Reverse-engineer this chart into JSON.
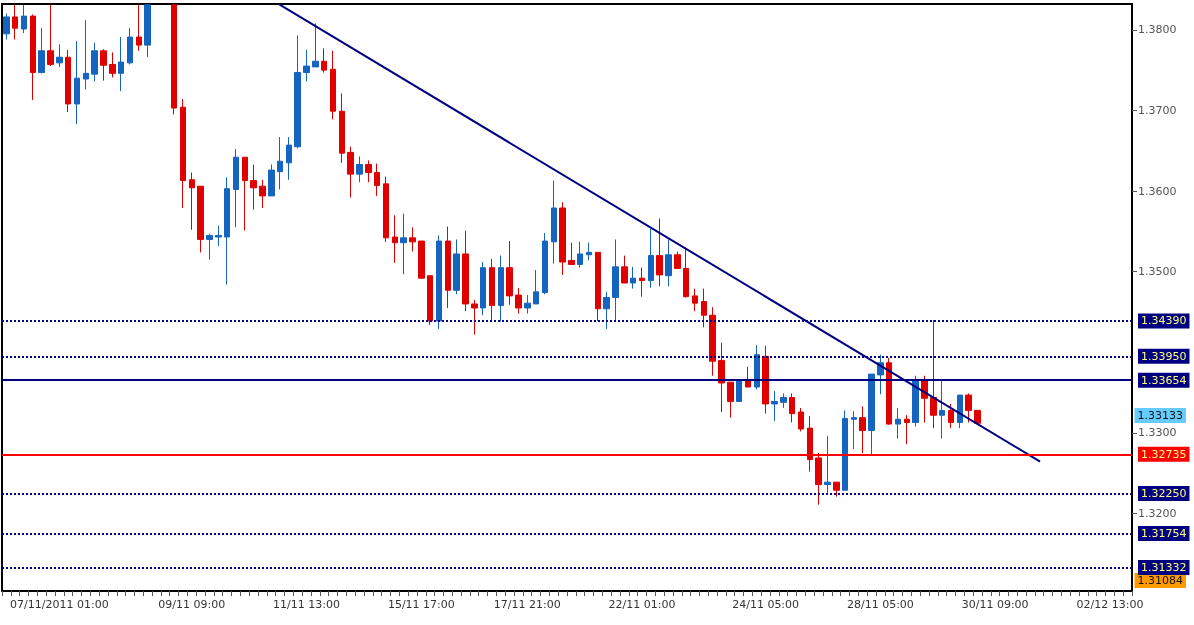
{
  "chart_data": {
    "type": "candlestick",
    "categories": [
      null,
      null,
      null,
      null,
      null,
      null,
      "07/11/2011 01:00",
      null,
      null,
      null,
      null,
      null,
      null,
      null,
      null,
      null,
      null,
      null,
      null,
      null,
      null,
      "09/11 09:00",
      null,
      null,
      null,
      null,
      null,
      null,
      null,
      null,
      null,
      null,
      null,
      null,
      "11/11 13:00",
      null,
      null,
      null,
      null,
      null,
      null,
      null,
      null,
      null,
      null,
      null,
      null,
      "15/11 17:00",
      null,
      null,
      null,
      null,
      null,
      null,
      null,
      null,
      null,
      null,
      null,
      "17/11 21:00",
      null,
      null,
      null,
      null,
      null,
      null,
      null,
      null,
      null,
      null,
      null,
      null,
      "22/11 01:00",
      null,
      null,
      null,
      null,
      null,
      null,
      null,
      null,
      null,
      null,
      null,
      null,
      null,
      "24/11 05:00",
      null,
      null,
      null,
      null,
      null,
      null,
      null,
      null,
      null,
      null,
      null,
      null,
      "28/11 05:00",
      null,
      null,
      null,
      null,
      null,
      null,
      null,
      null,
      null,
      null,
      null,
      null,
      "30/11 09:00",
      null,
      null,
      null,
      null,
      null,
      null,
      null,
      null,
      null,
      null,
      null,
      null,
      "02/12 13:00",
      null,
      null
    ],
    "series": [
      {
        "ohlc": [
          [
            1.3795,
            1.382,
            1.3788,
            1.3816
          ],
          [
            1.3816,
            1.3831,
            1.3788,
            1.3802
          ],
          [
            1.3801,
            1.3831,
            1.3796,
            1.3817
          ],
          [
            1.3817,
            1.3819,
            1.3713,
            1.3747
          ],
          [
            1.3747,
            1.3802,
            1.3746,
            1.3774
          ],
          [
            1.3774,
            1.3831,
            1.3755,
            1.3757
          ],
          [
            1.3759,
            1.3782,
            1.3754,
            1.3766
          ],
          [
            1.3766,
            1.3775,
            1.3698,
            1.3708
          ],
          [
            1.3708,
            1.3786,
            1.3683,
            1.374
          ],
          [
            1.3739,
            1.3812,
            1.3726,
            1.3746
          ],
          [
            1.3745,
            1.3784,
            1.3736,
            1.3774
          ],
          [
            1.3774,
            1.3776,
            1.3737,
            1.3756
          ],
          [
            1.3757,
            1.3772,
            1.3741,
            1.3746
          ],
          [
            1.3746,
            1.3791,
            1.3724,
            1.376
          ],
          [
            1.3759,
            1.3802,
            1.3757,
            1.3791
          ],
          [
            1.3791,
            1.3831,
            1.3774,
            1.3781
          ],
          [
            1.3781,
            1.3831,
            1.3766,
            1.3831
          ],
          null,
          null,
          [
            1.3831,
            1.3831,
            1.3695,
            1.3703
          ],
          [
            1.3704,
            1.3714,
            1.3579,
            1.3613
          ],
          [
            1.3614,
            1.3623,
            1.3552,
            1.3604
          ],
          [
            1.3606,
            1.3606,
            1.3524,
            1.354
          ],
          [
            1.354,
            1.3547,
            1.3515,
            1.3545
          ],
          [
            1.3543,
            1.3557,
            1.3532,
            1.3545
          ],
          [
            1.3543,
            1.3617,
            1.3484,
            1.3603
          ],
          [
            1.3602,
            1.3652,
            1.3555,
            1.3642
          ],
          [
            1.3642,
            1.3642,
            1.3551,
            1.3613
          ],
          [
            1.3613,
            1.3633,
            1.3577,
            1.3604
          ],
          [
            1.3606,
            1.3614,
            1.3579,
            1.3594
          ],
          [
            1.3594,
            1.3633,
            1.3594,
            1.3626
          ],
          [
            1.3624,
            1.3667,
            1.3602,
            1.3637
          ],
          [
            1.3635,
            1.3667,
            1.3614,
            1.3657
          ],
          [
            1.3655,
            1.3793,
            1.3653,
            1.3747
          ],
          [
            1.3747,
            1.3775,
            1.3736,
            1.3755
          ],
          [
            1.3754,
            1.3808,
            1.3754,
            1.3761
          ],
          [
            1.3761,
            1.3777,
            1.3747,
            1.375
          ],
          [
            1.3751,
            1.3774,
            1.3689,
            1.3699
          ],
          [
            1.3699,
            1.3721,
            1.3635,
            1.3647
          ],
          [
            1.3648,
            1.3655,
            1.3592,
            1.3621
          ],
          [
            1.3621,
            1.3643,
            1.3611,
            1.3633
          ],
          [
            1.3633,
            1.3638,
            1.3611,
            1.3623
          ],
          [
            1.3623,
            1.3634,
            1.3594,
            1.3607
          ],
          [
            1.3609,
            1.3618,
            1.3537,
            1.3542
          ],
          [
            1.3543,
            1.357,
            1.3511,
            1.3536
          ],
          [
            1.3536,
            1.3572,
            1.3497,
            1.3542
          ],
          [
            1.3542,
            1.3555,
            1.3525,
            1.3537
          ],
          [
            1.3538,
            1.3538,
            1.3491,
            1.3492
          ],
          [
            1.3495,
            1.3495,
            1.3434,
            1.3439
          ],
          [
            1.3439,
            1.3545,
            1.3429,
            1.3538
          ],
          [
            1.3538,
            1.3556,
            1.3455,
            1.3477
          ],
          [
            1.3477,
            1.354,
            1.3472,
            1.3522
          ],
          [
            1.3522,
            1.3551,
            1.3451,
            1.346
          ],
          [
            1.346,
            1.3465,
            1.3422,
            1.3455
          ],
          [
            1.3455,
            1.3512,
            1.3446,
            1.3505
          ],
          [
            1.3505,
            1.3516,
            1.3438,
            1.3458
          ],
          [
            1.3458,
            1.352,
            1.3438,
            1.3505
          ],
          [
            1.3505,
            1.3538,
            1.3459,
            1.347
          ],
          [
            1.3471,
            1.348,
            1.3448,
            1.3455
          ],
          [
            1.3455,
            1.3471,
            1.3448,
            1.3461
          ],
          [
            1.346,
            1.3502,
            1.346,
            1.3475
          ],
          [
            1.3474,
            1.3548,
            1.3472,
            1.3538
          ],
          [
            1.3537,
            1.3613,
            1.351,
            1.3579
          ],
          [
            1.3579,
            1.3586,
            1.3496,
            1.3512
          ],
          [
            1.3514,
            1.3536,
            1.3509,
            1.3509
          ],
          [
            1.3509,
            1.3537,
            1.3505,
            1.3522
          ],
          [
            1.3521,
            1.3536,
            1.3514,
            1.3524
          ],
          [
            1.3524,
            1.3524,
            1.3439,
            1.3454
          ],
          [
            1.3454,
            1.3475,
            1.3429,
            1.3468
          ],
          [
            1.3468,
            1.354,
            1.344,
            1.3506
          ],
          [
            1.3506,
            1.352,
            1.3486,
            1.3486
          ],
          [
            1.3486,
            1.3506,
            1.3479,
            1.3492
          ],
          [
            1.3492,
            1.3505,
            1.3469,
            1.3489
          ],
          [
            1.3489,
            1.3553,
            1.348,
            1.352
          ],
          [
            1.352,
            1.3566,
            1.3482,
            1.3496
          ],
          [
            1.3495,
            1.354,
            1.3482,
            1.3521
          ],
          [
            1.3521,
            1.3525,
            1.3504,
            1.3504
          ],
          [
            1.3504,
            1.353,
            1.3468,
            1.3469
          ],
          [
            1.347,
            1.3479,
            1.3451,
            1.3461
          ],
          [
            1.3463,
            1.3479,
            1.3431,
            1.3446
          ],
          [
            1.3446,
            1.3456,
            1.3371,
            1.3389
          ],
          [
            1.339,
            1.3412,
            1.3326,
            1.3362
          ],
          [
            1.3363,
            1.3363,
            1.3319,
            1.3339
          ],
          [
            1.3339,
            1.3366,
            1.3339,
            1.3366
          ],
          [
            1.3366,
            1.3382,
            1.3357,
            1.3357
          ],
          [
            1.3357,
            1.3409,
            1.3354,
            1.3397
          ],
          [
            1.3395,
            1.3408,
            1.3324,
            1.3336
          ],
          [
            1.3336,
            1.3352,
            1.3315,
            1.3339
          ],
          [
            1.3338,
            1.3349,
            1.3331,
            1.3344
          ],
          [
            1.3344,
            1.3349,
            1.3313,
            1.3324
          ],
          [
            1.3326,
            1.3331,
            1.3302,
            1.3305
          ],
          [
            1.3306,
            1.3321,
            1.3252,
            1.3267
          ],
          [
            1.3269,
            1.3275,
            1.3211,
            1.3236
          ],
          [
            1.3236,
            1.3296,
            1.3225,
            1.3239
          ],
          [
            1.3239,
            1.3239,
            1.3221,
            1.3229
          ],
          [
            1.3229,
            1.3328,
            1.3229,
            1.3318
          ],
          [
            1.3317,
            1.3327,
            1.328,
            1.3319
          ],
          [
            1.3319,
            1.3333,
            1.3275,
            1.3303
          ],
          [
            1.3303,
            1.3373,
            1.3272,
            1.3373
          ],
          [
            1.3372,
            1.3397,
            1.3348,
            1.3387
          ],
          [
            1.3387,
            1.3393,
            1.331,
            1.3311
          ],
          [
            1.3311,
            1.3331,
            1.3293,
            1.3317
          ],
          [
            1.3317,
            1.3322,
            1.3286,
            1.3313
          ],
          [
            1.3313,
            1.3371,
            1.3308,
            1.3366
          ],
          [
            1.3366,
            1.3371,
            1.3313,
            1.3343
          ],
          [
            1.3344,
            1.344,
            1.3306,
            1.3322
          ],
          [
            1.3322,
            1.3366,
            1.3293,
            1.3328
          ],
          [
            1.3328,
            1.3336,
            1.3306,
            1.3313
          ],
          [
            1.3313,
            1.3347,
            1.3306,
            1.3347
          ],
          [
            1.3347,
            1.3349,
            1.3313,
            1.3328
          ],
          [
            1.3328,
            1.3328,
            1.3311,
            1.3312
          ],
          null,
          null,
          null,
          null,
          null,
          null,
          null,
          null,
          null,
          null,
          null,
          null,
          null,
          null,
          null,
          null,
          null
        ],
        "colors": [
          "#1565c0",
          "#e00000",
          "#1565c0",
          "#e00000",
          "#1565c0",
          "#e00000",
          "#1565c0",
          "#e00000",
          "#1565c0",
          "#1565c0",
          "#1565c0",
          "#e00000",
          "#e00000",
          "#1565c0",
          "#1565c0",
          "#e00000",
          "#1565c0",
          null,
          null,
          "#e00000",
          "#e00000",
          "#e00000",
          "#e00000",
          "#1565c0",
          "#1565c0",
          "#1565c0",
          "#1565c0",
          "#e00000",
          "#e00000",
          "#e00000",
          "#1565c0",
          "#1565c0",
          "#1565c0",
          "#1565c0",
          "#1565c0",
          "#1565c0",
          "#e00000",
          "#e00000",
          "#e00000",
          "#e00000",
          "#1565c0",
          "#e00000",
          "#e00000",
          "#e00000",
          "#e00000",
          "#1565c0",
          "#e00000",
          "#e00000",
          "#e00000",
          "#1565c0",
          "#e00000",
          "#1565c0",
          "#e00000",
          "#e00000",
          "#1565c0",
          "#e00000",
          "#1565c0",
          "#e00000",
          "#e00000",
          "#1565c0",
          "#1565c0",
          "#1565c0",
          "#1565c0",
          "#e00000",
          "#e00000",
          "#1565c0",
          "#1565c0",
          "#e00000",
          "#1565c0",
          "#1565c0",
          "#e00000",
          "#1565c0",
          "#e00000",
          "#1565c0",
          "#e00000",
          "#1565c0",
          "#e00000",
          "#e00000",
          "#e00000",
          "#e00000",
          "#e00000",
          "#e00000",
          "#e00000",
          "#1565c0",
          "#e00000",
          "#1565c0",
          "#e00000",
          "#1565c0",
          "#1565c0",
          "#e00000",
          "#e00000",
          "#e00000",
          "#e00000",
          "#1565c0",
          "#e00000",
          "#1565c0",
          "#1565c0",
          "#e00000",
          "#1565c0",
          "#1565c0",
          "#e00000",
          "#1565c0",
          "#e00000",
          "#1565c0",
          "#e00000",
          "#e00000",
          "#1565c0",
          "#e00000",
          "#1565c0",
          "#e00000",
          "#e00000",
          null,
          null,
          null,
          null,
          null,
          null,
          null,
          null,
          null,
          null,
          null,
          null,
          null,
          null,
          null,
          null,
          null
        ]
      },
      {
        "type": "line",
        "color": "#000080",
        "values": [
          null,
          null,
          null,
          null,
          null,
          null,
          null,
          null,
          null,
          null,
          null,
          null,
          null,
          null,
          null,
          null,
          null,
          null,
          null,
          null,
          null,
          null,
          null,
          null,
          null,
          null,
          null,
          null,
          null,
          null,
          null,
          1.3831,
          null,
          null,
          null,
          null,
          null,
          null,
          null,
          null,
          null,
          null,
          null,
          null,
          null,
          null,
          null,
          null,
          null,
          null,
          null,
          null,
          null,
          null,
          null,
          null,
          null,
          null,
          null,
          null,
          null,
          null,
          null,
          null,
          null,
          null,
          null,
          null,
          null,
          null,
          null,
          null,
          null,
          null,
          null,
          null,
          null,
          null,
          null,
          null,
          null,
          null,
          null,
          null,
          null,
          null,
          null,
          null,
          null,
          null,
          null,
          null,
          null,
          null,
          null,
          null,
          null,
          null,
          null,
          null,
          null,
          null,
          null,
          null,
          null,
          null,
          null,
          null,
          null,
          null,
          null,
          null,
          null,
          null,
          null,
          null,
          null,
          1.3265,
          null,
          null,
          null,
          null,
          null,
          null,
          null,
          null,
          null,
          null
        ]
      }
    ],
    "ylim": [
      1.3104,
      1.3832
    ],
    "yticks": [
      {
        "value": 1.32,
        "label": "1.3200"
      },
      {
        "value": 1.33,
        "label": "1.3300"
      },
      {
        "value": 1.35,
        "label": "1.3500"
      },
      {
        "value": 1.36,
        "label": "1.3600"
      },
      {
        "value": 1.37,
        "label": "1.3700"
      },
      {
        "value": 1.38,
        "label": "1.3800"
      }
    ],
    "ref_lines": [
      {
        "axis": "y",
        "value": 1.3439,
        "label": "1.34390",
        "color": "#000080",
        "line_style": "dotted"
      },
      {
        "axis": "y",
        "value": 1.3395,
        "label": "1.33950",
        "color": "#000080",
        "line_style": "dotted"
      },
      {
        "axis": "y",
        "value": 1.33654,
        "label": "1.33654",
        "color": "#000080",
        "line_style": "solid"
      },
      {
        "axis": "y",
        "value": 1.32735,
        "label": "1.32735",
        "color": "#ff0000",
        "line_style": "solid"
      },
      {
        "axis": "y",
        "value": 1.3225,
        "label": "1.32250",
        "color": "#000080",
        "line_style": "dotted"
      },
      {
        "axis": "y",
        "value": 1.31754,
        "label": "1.31754",
        "color": "#000080",
        "line_style": "dotted"
      },
      {
        "axis": "y",
        "value": 1.31332,
        "label": "1.31332",
        "color": "#000080",
        "line_style": "dotted"
      }
    ],
    "annotations": [
      "1.33133",
      "1.31084"
    ],
    "grid": false
  }
}
